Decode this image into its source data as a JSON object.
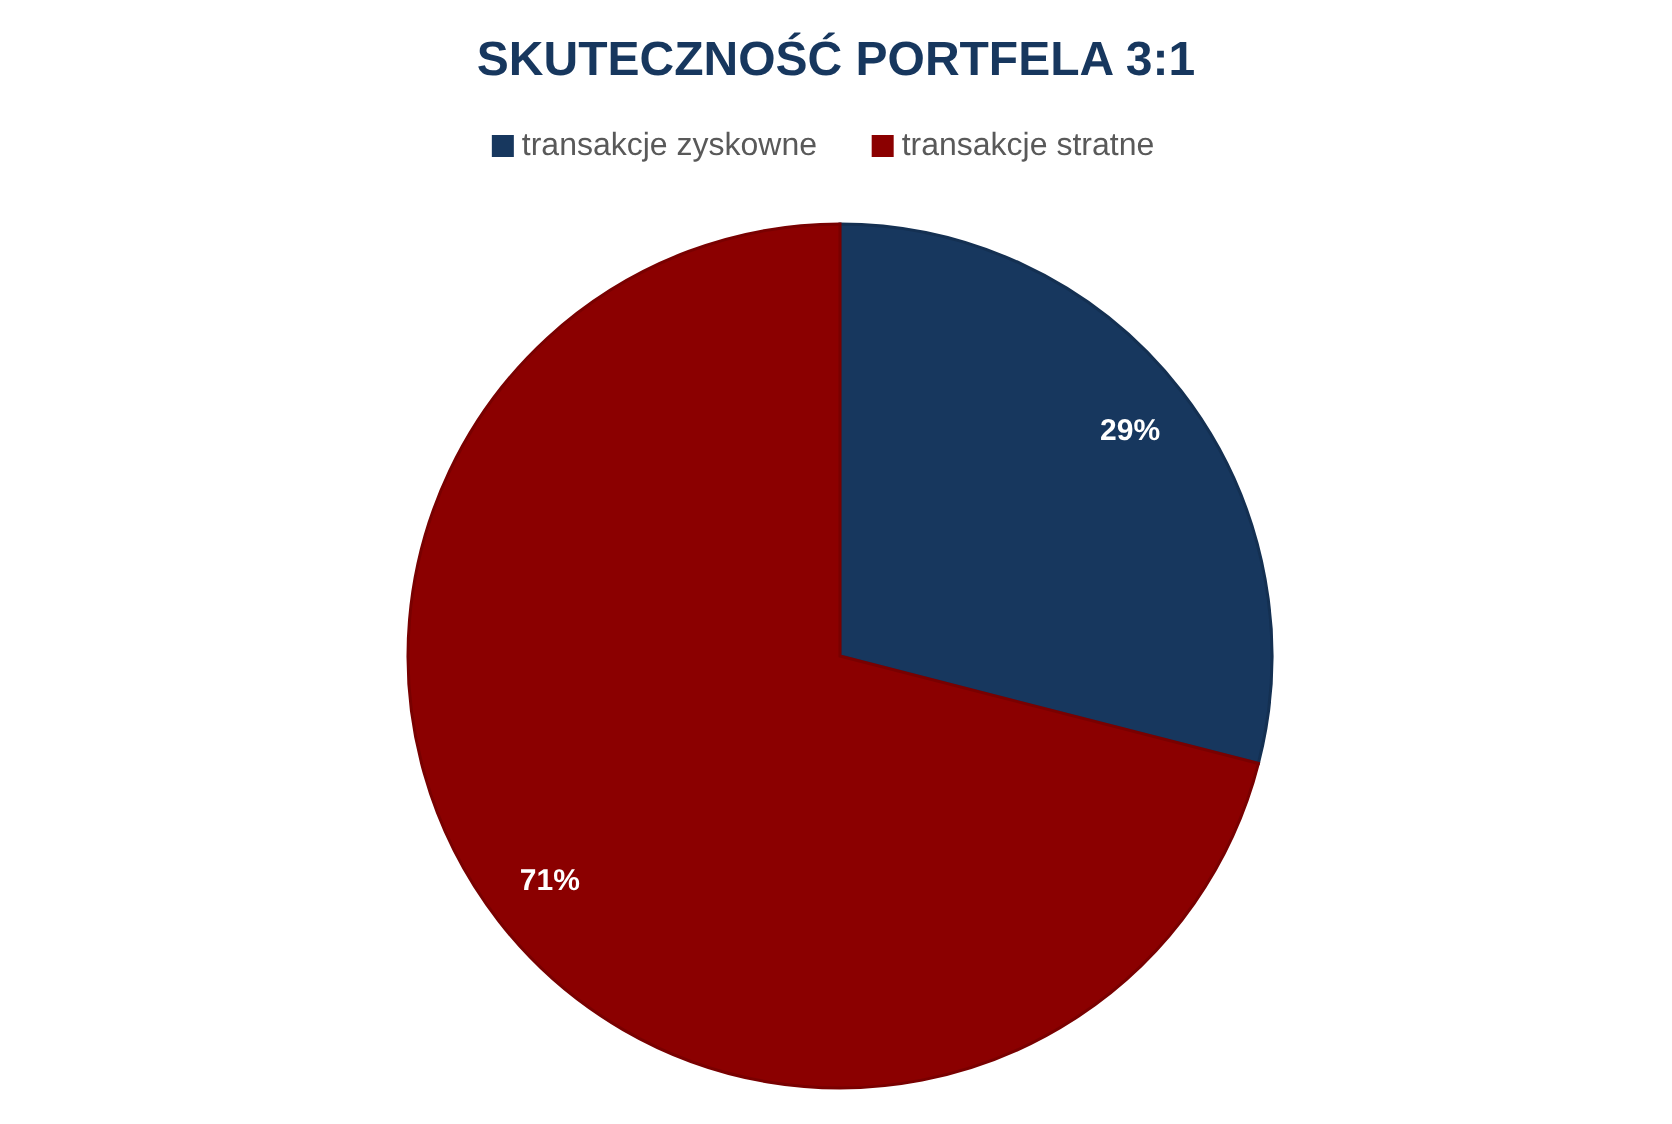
{
  "chart_data": {
    "type": "pie",
    "title": "SKUTECZNOŚĆ PORTFELA 3:1",
    "categories": [
      "transakcje zyskowne",
      "transakcje stratne"
    ],
    "values": [
      29,
      71
    ],
    "colors": [
      "#17375e",
      "#8b0000"
    ],
    "value_labels": [
      "29%",
      "71%"
    ],
    "legend": "top"
  }
}
